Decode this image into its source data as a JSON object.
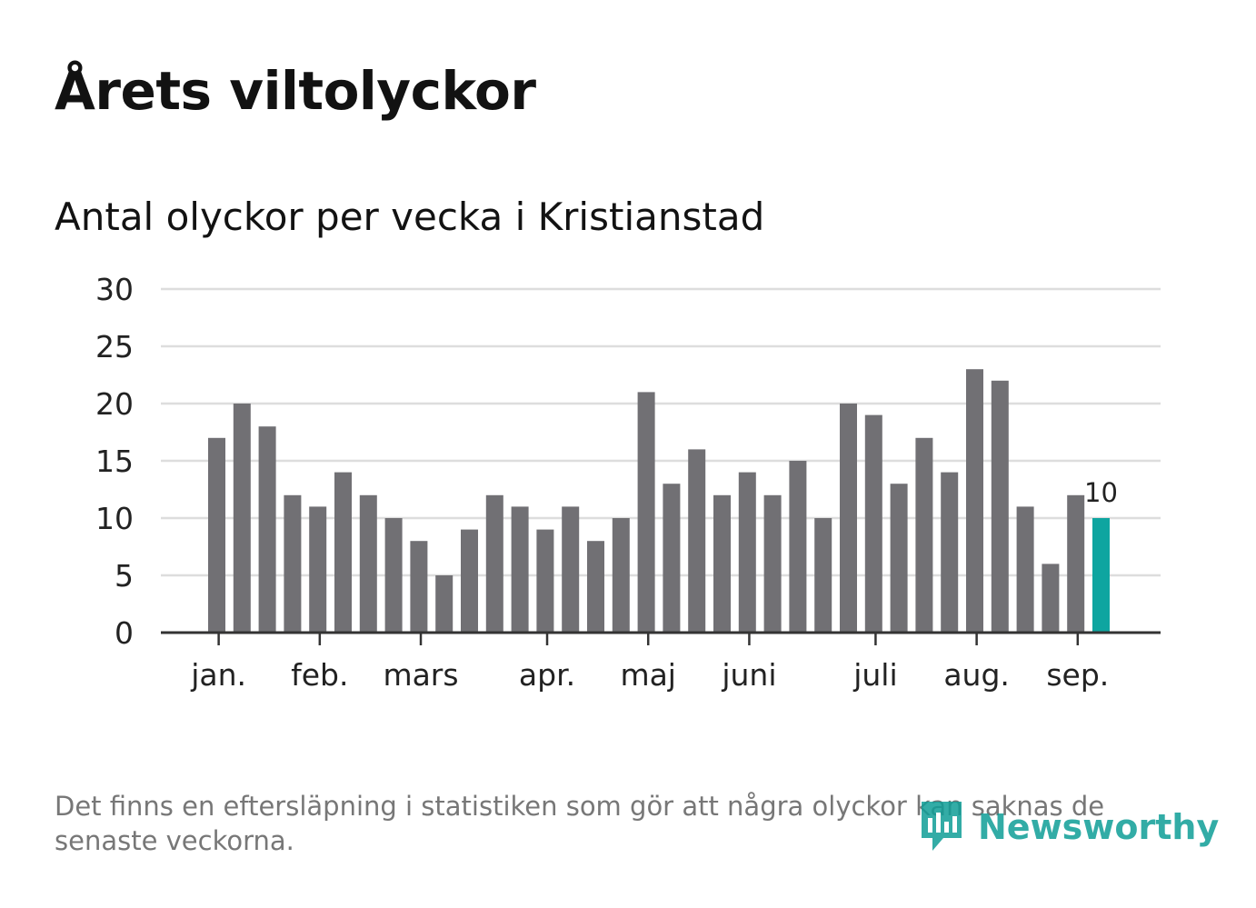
{
  "title": "Årets viltolyckor",
  "subtitle": "Antal olyckor per vecka i Kristianstad",
  "footnote": "Det finns en eftersläpning i statistiken som gör att några olyckor kan saknas de senaste veckorna.",
  "logo_text": "Newsworthy",
  "colors": {
    "bar": "#717074",
    "highlight": "#0ea5a0",
    "grid": "#dddddd",
    "axis": "#333333",
    "text": "#222222",
    "logo": "#0f9e97"
  },
  "chart_data": {
    "type": "bar",
    "ylim": [
      0,
      30
    ],
    "yticks": [
      0,
      5,
      10,
      15,
      20,
      25,
      30
    ],
    "grid": true,
    "values": [
      17,
      20,
      18,
      12,
      11,
      14,
      12,
      10,
      8,
      5,
      9,
      12,
      11,
      9,
      11,
      8,
      10,
      21,
      13,
      16,
      12,
      14,
      12,
      15,
      10,
      20,
      19,
      13,
      17,
      14,
      23,
      22,
      11,
      6,
      12,
      10
    ],
    "highlight_index": 35,
    "highlight_label": "10",
    "month_labels": [
      {
        "label": "jan.",
        "week": 0.4
      },
      {
        "label": "feb.",
        "week": 4.4
      },
      {
        "label": "mars",
        "week": 8.4
      },
      {
        "label": "apr.",
        "week": 13.4
      },
      {
        "label": "maj",
        "week": 17.4
      },
      {
        "label": "juni",
        "week": 21.4
      },
      {
        "label": "juli",
        "week": 26.4
      },
      {
        "label": "aug.",
        "week": 30.4
      },
      {
        "label": "sep.",
        "week": 34.4
      }
    ]
  }
}
